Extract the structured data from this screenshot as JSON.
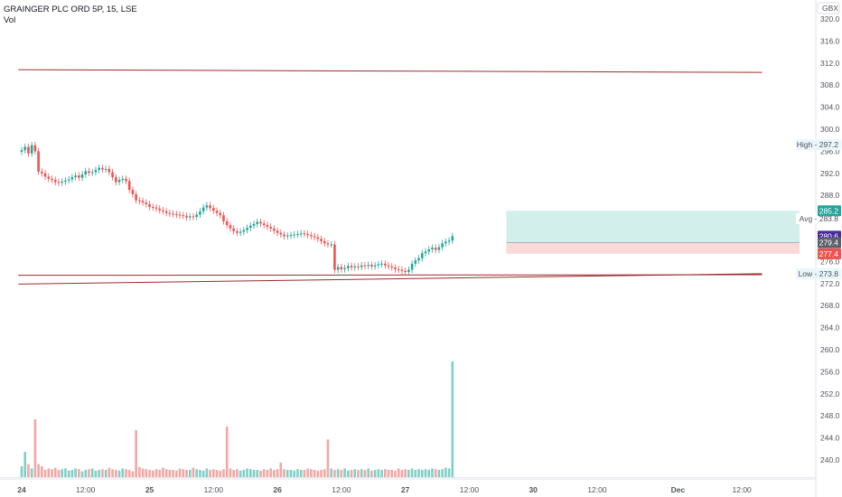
{
  "header": {
    "symbol_line": "GRAINGER PLC ORD 5P, 15, LSE",
    "volume_label": "Vol"
  },
  "currency": "GBX",
  "price_tags": {
    "high": "High - 297.2",
    "avg": "Avg - 283.8",
    "low": "Low - 273.8",
    "target": "285.2",
    "current": "280.6",
    "entry": "279.4",
    "stop": "277.4",
    "hidden_tick": "276.0"
  },
  "colors": {
    "up": "#26a69a",
    "down": "#ef5350",
    "trendline": "#9c2b2b",
    "volume_up": "#7fcfc7",
    "volume_down": "#f2a7a4",
    "target_zone": "#d2efec",
    "stop_zone": "#fcd9d9",
    "current_tag": "#4b2c9e",
    "entry_tag": "#5d606b"
  },
  "chart_data": {
    "type": "candlestick",
    "title": "GRAINGER PLC ORD 5P, 15, LSE",
    "ylim": [
      238,
      322
    ],
    "y_ticks": [
      240,
      244,
      248,
      252,
      256,
      260,
      264,
      268,
      272,
      276,
      280,
      284,
      288,
      292,
      296,
      300,
      304,
      308,
      312,
      316,
      320
    ],
    "x_ticks": [
      {
        "label": "24",
        "i": 0
      },
      {
        "label": "12:00",
        "i": 19
      },
      {
        "label": "25",
        "i": 38
      },
      {
        "label": "12:00",
        "i": 57
      },
      {
        "label": "26",
        "i": 76
      },
      {
        "label": "12:00",
        "i": 95
      },
      {
        "label": "27",
        "i": 114
      },
      {
        "label": "12:00",
        "i": 133
      },
      {
        "label": "30",
        "i": 152
      },
      {
        "label": "12:00",
        "i": 171
      },
      {
        "label": "Dec",
        "i": 195
      },
      {
        "label": "12:00",
        "i": 214
      }
    ],
    "close": [
      296.2,
      296.8,
      295.6,
      297.1,
      296.0,
      292.3,
      292.0,
      291.4,
      291.0,
      290.8,
      290.4,
      290.3,
      290.5,
      290.7,
      290.9,
      291.3,
      291.6,
      291.2,
      291.8,
      292.4,
      292.1,
      292.2,
      292.6,
      293.0,
      292.7,
      292.8,
      292.2,
      291.3,
      290.4,
      290.8,
      291.0,
      290.6,
      289.0,
      288.2,
      287.1,
      287.0,
      286.7,
      286.4,
      285.9,
      285.8,
      285.6,
      285.3,
      285.1,
      284.8,
      284.7,
      284.6,
      284.5,
      284.4,
      284.3,
      284.0,
      284.2,
      284.1,
      284.5,
      285.1,
      285.8,
      286.2,
      285.7,
      285.2,
      284.8,
      284.4,
      283.3,
      282.6,
      282.0,
      281.5,
      281.2,
      281.4,
      281.7,
      282.1,
      282.5,
      282.8,
      283.2,
      282.9,
      282.6,
      282.3,
      282.0,
      281.6,
      281.2,
      280.9,
      280.6,
      280.7,
      280.8,
      280.9,
      281.0,
      281.1,
      281.0,
      280.8,
      280.6,
      280.4,
      280.1,
      279.7,
      279.3,
      279.1,
      279.1,
      274.5,
      275.0,
      274.6,
      274.8,
      275.2,
      274.9,
      275.1,
      275.0,
      275.3,
      275.2,
      275.4,
      275.1,
      275.3,
      275.5,
      275.6,
      275.3,
      275.1,
      274.9,
      274.6,
      274.5,
      274.3,
      274.1,
      274.5,
      275.6,
      276.2,
      276.6,
      277.5,
      277.8,
      278.2,
      278.5,
      278.1,
      278.6,
      279.3,
      279.6,
      279.8,
      280.6
    ],
    "high_low_note": "Intrabar high/low derived from OHLC",
    "volume": [
      1.5,
      3.5,
      1.8,
      1.2,
      8.0,
      1.8,
      1.5,
      1.0,
      1.2,
      1.1,
      1.3,
      1.0,
      1.1,
      1.2,
      0.9,
      1.0,
      1.2,
      1.1,
      0.8,
      1.0,
      1.1,
      1.2,
      0.9,
      1.0,
      1.1,
      1.0,
      1.3,
      1.1,
      1.0,
      0.9,
      1.2,
      1.1,
      1.0,
      0.8,
      6.5,
      1.4,
      1.2,
      1.1,
      1.0,
      0.9,
      1.1,
      1.0,
      1.3,
      1.1,
      1.0,
      1.0,
      0.9,
      1.2,
      1.1,
      1.0,
      1.0,
      1.3,
      1.1,
      1.0,
      0.9,
      1.2,
      1.0,
      1.1,
      1.0,
      0.9,
      1.1,
      7.0,
      1.2,
      1.0,
      1.1,
      0.9,
      1.0,
      1.2,
      1.1,
      1.0,
      1.0,
      0.9,
      1.1,
      1.0,
      1.2,
      1.0,
      1.1,
      2.0,
      1.1,
      1.0,
      1.0,
      0.9,
      1.1,
      1.0,
      1.0,
      1.2,
      1.1,
      1.0,
      0.9,
      1.0,
      1.1,
      5.2,
      1.2,
      1.0,
      1.1,
      1.0,
      1.2,
      0.9,
      1.0,
      1.1,
      1.0,
      1.1,
      1.0,
      1.2,
      0.9,
      1.0,
      1.1,
      1.0,
      1.1,
      1.0,
      1.0,
      0.9,
      1.2,
      1.0,
      1.1,
      1.0,
      1.2,
      1.0,
      1.1,
      1.0,
      1.1,
      1.0,
      1.2,
      1.1,
      1.0,
      1.1,
      1.3,
      1.2,
      16.0
    ],
    "trendlines": [
      {
        "name": "resistance",
        "from": {
          "i": -1,
          "price": 310.8
        },
        "to": {
          "i": 220,
          "price": 310.3
        }
      },
      {
        "name": "support",
        "from": {
          "i": -1,
          "price": 271.9
        },
        "to": {
          "i": 220,
          "price": 273.8
        }
      },
      {
        "name": "support-lower",
        "from": {
          "i": -1,
          "price": 273.5
        },
        "to": {
          "i": 220,
          "price": 273.6
        }
      }
    ],
    "position": {
      "entry": 279.4,
      "target": 285.2,
      "stop": 277.4,
      "from_i": 144,
      "to_i": 220
    }
  }
}
